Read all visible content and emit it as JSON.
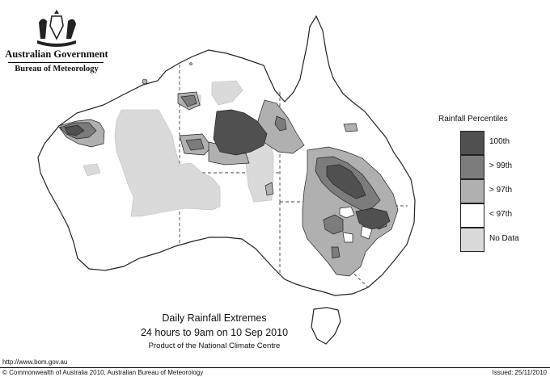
{
  "header": {
    "government": "Australian Government",
    "bureau": "Bureau of Meteorology",
    "crest_icon": "coat-of-arms-icon"
  },
  "legend": {
    "title": "Rainfall Percentiles",
    "items": [
      {
        "label": "100th",
        "color": "#505050"
      },
      {
        "label": "> 99th",
        "color": "#7c7c7c"
      },
      {
        "label": "> 97th",
        "color": "#b0b0b0"
      },
      {
        "label": "< 97th",
        "color": "#ffffff"
      },
      {
        "label": "No Data",
        "color": "#dadada"
      }
    ]
  },
  "caption": {
    "line1": "Daily Rainfall Extremes",
    "line2": "24 hours to 9am on 10 Sep 2010",
    "line3": "Product of the National Climate Centre"
  },
  "footer": {
    "url": "http://www.bom.gov.au",
    "copyright": "© Commonwealth of Australia 2010, Australian Bureau of Meteorology",
    "issued": "Issued: 25/11/2010"
  },
  "colors": {
    "outline": "#222222",
    "borders": "#444444"
  }
}
